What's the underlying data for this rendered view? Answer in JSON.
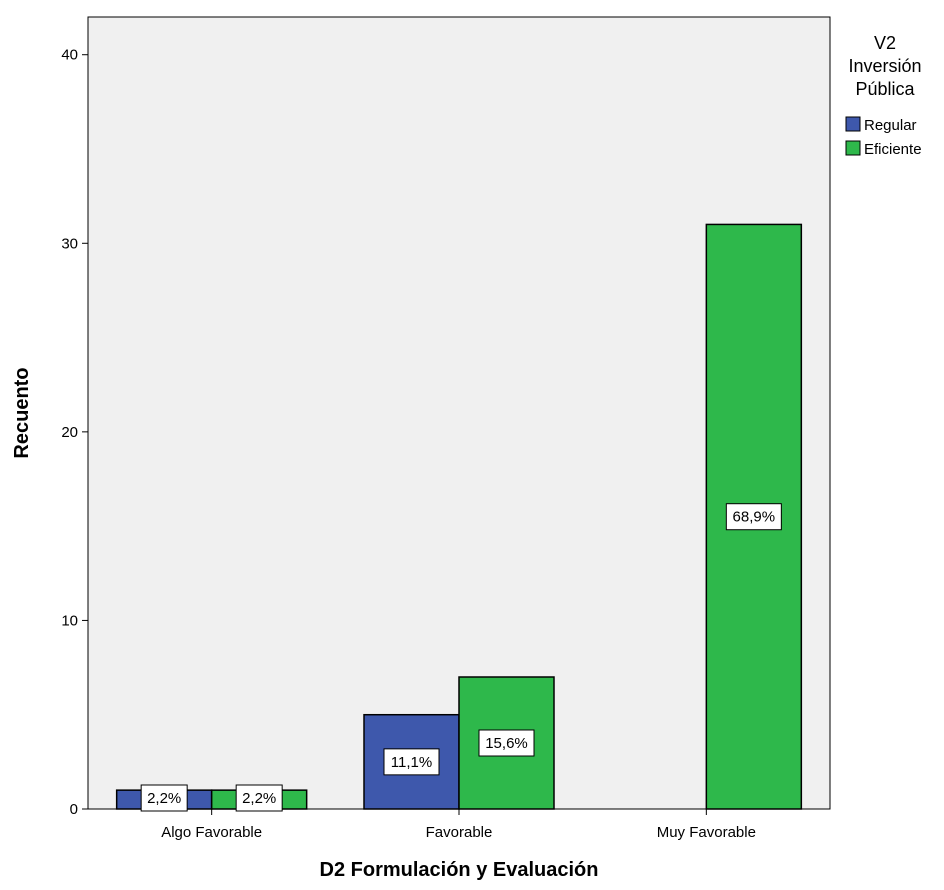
{
  "chart_data": {
    "type": "bar",
    "xlabel": "D2 Formulación y Evaluación",
    "ylabel": "Recuento",
    "ylim": [
      0,
      42
    ],
    "yticks": [
      0,
      10,
      20,
      30,
      40
    ],
    "categories": [
      "Algo Favorable",
      "Favorable",
      "Muy Favorable"
    ],
    "legend": {
      "title_lines": [
        "V2",
        "Inversión",
        "Pública"
      ],
      "placement": "right"
    },
    "series": [
      {
        "name": "Regular",
        "color": "#3e58ac",
        "values": [
          1,
          5,
          0
        ],
        "labels": [
          "2,2%",
          "11,1%",
          null
        ]
      },
      {
        "name": "Eficiente",
        "color": "#2eb84b",
        "values": [
          1,
          7,
          31
        ],
        "labels": [
          "2,2%",
          "15,6%",
          "68,9%"
        ]
      }
    ],
    "plot_background": "#f0f0f0",
    "grid": false
  }
}
